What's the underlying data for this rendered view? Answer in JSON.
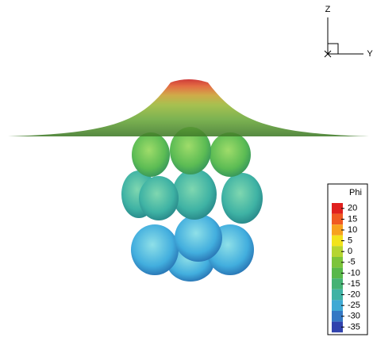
{
  "axes": {
    "z": "Z",
    "y": "Y"
  },
  "legend": {
    "title": "Phi",
    "values": [
      20,
      15,
      10,
      5,
      0,
      -5,
      -10,
      -15,
      -20,
      -25,
      -30,
      -35
    ],
    "colors": [
      "#e0201e",
      "#f05a22",
      "#f7a21e",
      "#f2e31c",
      "#b5d531",
      "#7cc43a",
      "#58b84a",
      "#44b274",
      "#3fb2a4",
      "#3fa9d4",
      "#3478c4",
      "#3042ad"
    ]
  }
}
